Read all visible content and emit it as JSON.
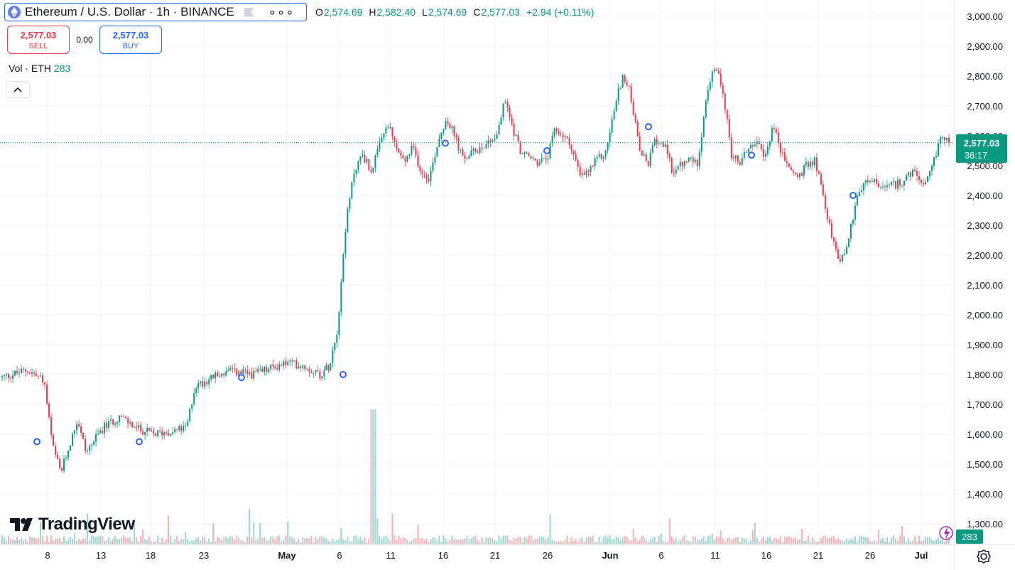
{
  "header": {
    "symbol": "Ethereum / U.S. Dollar · 1h · BINANCE",
    "ohlc": {
      "o_label": "O",
      "o": "2,574.69",
      "h_label": "H",
      "h": "2,582.40",
      "l_label": "L",
      "l": "2,574.69",
      "c_label": "C",
      "c": "2,577.03",
      "change": "+2.94 (+0.11%)"
    }
  },
  "trade": {
    "sell_price": "2,577.03",
    "sell_label": "SELL",
    "spread": "0.00",
    "buy_price": "2,577.03",
    "buy_label": "BUY"
  },
  "volume_legend": {
    "label": "Vol · ETH",
    "value": "283"
  },
  "price_badge": {
    "price": "2,577.03",
    "countdown": "36:17"
  },
  "volume_badge": "283",
  "brand": "TradingView",
  "colors": {
    "up": "#089981",
    "down": "#f23645",
    "accent": "#2962ff",
    "grid": "#f0f3fa"
  },
  "icons": [
    "ethereum-icon",
    "flag-icon",
    "more-icon",
    "chevron-up-icon",
    "tradingview-logo-icon",
    "lightning-icon",
    "settings-icon"
  ],
  "chart_data": {
    "type": "candlestick",
    "ylim": [
      1250,
      3050
    ],
    "y_ticks": [
      "3,000.00",
      "2,900.00",
      "2,800.00",
      "2,700.00",
      "2,600.00",
      "2,500.00",
      "2,400.00",
      "2,300.00",
      "2,200.00",
      "2,100.00",
      "2,000.00",
      "1,900.00",
      "1,800.00",
      "1,700.00",
      "1,600.00",
      "1,500.00",
      "1,400.00",
      "1,300.00"
    ],
    "x_ticks": [
      "8",
      "13",
      "18",
      "23",
      "May",
      "6",
      "11",
      "16",
      "21",
      "26",
      "Jun",
      "6",
      "11",
      "16",
      "21",
      "26",
      "Jul"
    ],
    "last_price": 2577.03,
    "trend": [
      [
        0,
        1790
      ],
      [
        3,
        1815
      ],
      [
        5,
        1780
      ],
      [
        6,
        1560
      ],
      [
        7,
        1470
      ],
      [
        8,
        1560
      ],
      [
        9,
        1650
      ],
      [
        10,
        1540
      ],
      [
        12,
        1620
      ],
      [
        14,
        1660
      ],
      [
        16,
        1620
      ],
      [
        18,
        1600
      ],
      [
        20,
        1610
      ],
      [
        22,
        1620
      ],
      [
        23,
        1760
      ],
      [
        25,
        1790
      ],
      [
        27,
        1810
      ],
      [
        30,
        1800
      ],
      [
        32,
        1820
      ],
      [
        34,
        1840
      ],
      [
        36,
        1830
      ],
      [
        38,
        1800
      ],
      [
        39,
        1830
      ],
      [
        40,
        1950
      ],
      [
        41,
        2300
      ],
      [
        42,
        2480
      ],
      [
        43,
        2540
      ],
      [
        44,
        2480
      ],
      [
        45,
        2560
      ],
      [
        46,
        2640
      ],
      [
        47,
        2560
      ],
      [
        48,
        2510
      ],
      [
        49,
        2560
      ],
      [
        50,
        2480
      ],
      [
        51,
        2460
      ],
      [
        52,
        2580
      ],
      [
        53,
        2660
      ],
      [
        54,
        2600
      ],
      [
        55,
        2520
      ],
      [
        57,
        2560
      ],
      [
        59,
        2600
      ],
      [
        60,
        2720
      ],
      [
        61,
        2620
      ],
      [
        62,
        2540
      ],
      [
        64,
        2510
      ],
      [
        65,
        2520
      ],
      [
        66,
        2620
      ],
      [
        67,
        2600
      ],
      [
        68,
        2560
      ],
      [
        69,
        2460
      ],
      [
        70,
        2480
      ],
      [
        71,
        2520
      ],
      [
        72,
        2540
      ],
      [
        73,
        2680
      ],
      [
        74,
        2800
      ],
      [
        75,
        2740
      ],
      [
        76,
        2560
      ],
      [
        77,
        2500
      ],
      [
        78,
        2590
      ],
      [
        79,
        2570
      ],
      [
        80,
        2480
      ],
      [
        81,
        2500
      ],
      [
        82,
        2520
      ],
      [
        83,
        2510
      ],
      [
        84,
        2720
      ],
      [
        85,
        2830
      ],
      [
        86,
        2760
      ],
      [
        87,
        2540
      ],
      [
        88,
        2510
      ],
      [
        89,
        2560
      ],
      [
        90,
        2580
      ],
      [
        91,
        2520
      ],
      [
        92,
        2640
      ],
      [
        93,
        2540
      ],
      [
        94,
        2490
      ],
      [
        95,
        2460
      ],
      [
        96,
        2500
      ],
      [
        97,
        2520
      ],
      [
        98,
        2400
      ],
      [
        99,
        2260
      ],
      [
        100,
        2180
      ],
      [
        101,
        2250
      ],
      [
        102,
        2400
      ],
      [
        103,
        2440
      ],
      [
        104,
        2450
      ],
      [
        105,
        2420
      ],
      [
        106,
        2430
      ],
      [
        107,
        2440
      ],
      [
        108,
        2460
      ],
      [
        109,
        2480
      ],
      [
        110,
        2420
      ],
      [
        111,
        2490
      ],
      [
        112,
        2600
      ],
      [
        113,
        2577
      ]
    ],
    "event_markers": [
      1575,
      1575,
      1790,
      1800,
      2575,
      2550,
      2630,
      2535,
      2400
    ]
  }
}
